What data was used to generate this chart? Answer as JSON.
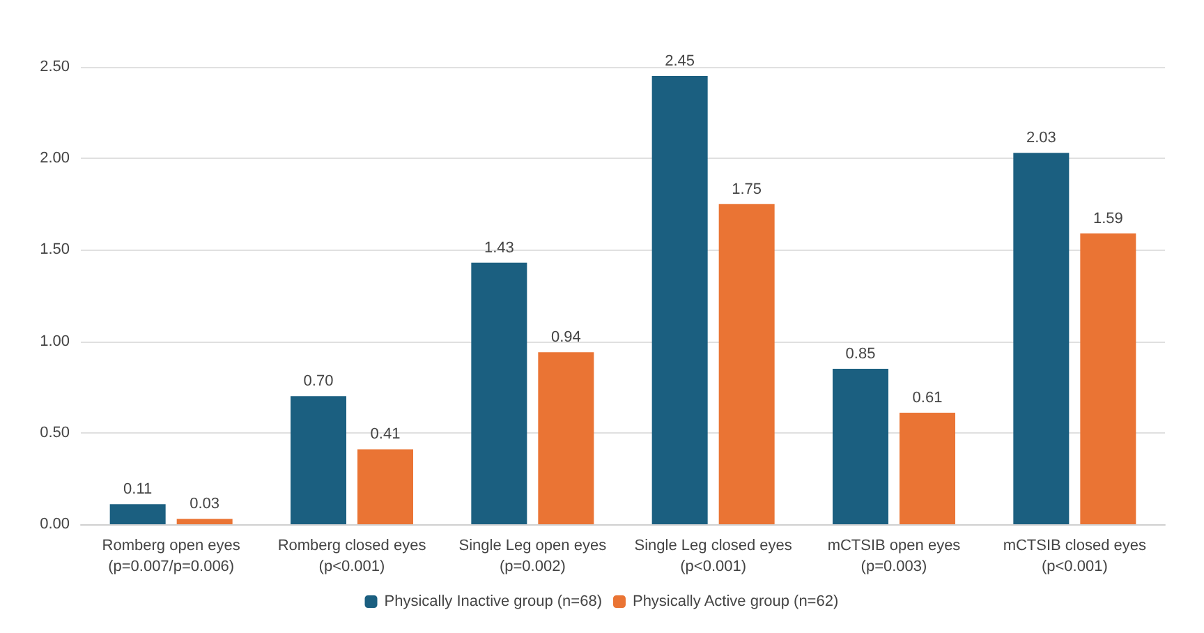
{
  "chart_data": {
    "type": "bar",
    "categories": [
      "Romberg open eyes\n(p=0.007/p=0.006)",
      "Romberg closed eyes\n(p<0.001)",
      "Single Leg open eyes\n(p=0.002)",
      "Single Leg closed eyes\n(p<0.001)",
      "mCTSIB open eyes\n(p=0.003)",
      "mCTSIB closed eyes\n(p<0.001)"
    ],
    "series": [
      {
        "name": "Physically Inactive group (n=68)",
        "color": "#1b5f80",
        "values": [
          0.11,
          0.7,
          1.43,
          2.45,
          0.85,
          2.03
        ],
        "value_labels": [
          "0.11",
          "0.70",
          "1.43",
          "2.45",
          "0.85",
          "2.03"
        ]
      },
      {
        "name": "Physically Active group (n=62)",
        "color": "#ea7434",
        "values": [
          0.03,
          0.41,
          0.94,
          1.75,
          0.61,
          1.59
        ],
        "value_labels": [
          "0.03",
          "0.41",
          "0.94",
          "1.75",
          "0.61",
          "1.59"
        ]
      }
    ],
    "ylim": [
      0,
      2.5
    ],
    "yticks": [
      {
        "value": 0,
        "label": "0.00"
      },
      {
        "value": 0.5,
        "label": "0.50"
      },
      {
        "value": 1,
        "label": "1.00"
      },
      {
        "value": 1.5,
        "label": "1.50"
      },
      {
        "value": 2,
        "label": "2.00"
      },
      {
        "value": 2.5,
        "label": "2.50"
      }
    ],
    "grid": "y",
    "legend": "bottom"
  }
}
